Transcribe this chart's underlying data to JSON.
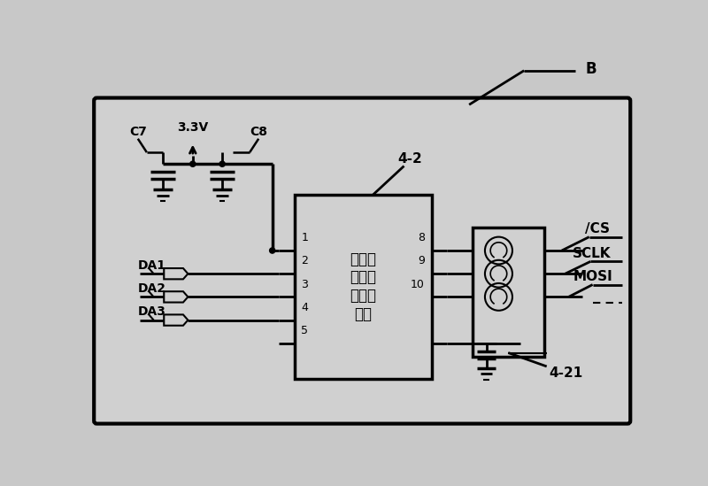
{
  "bg_color": "#c8c8c8",
  "box_bg": "#d0d0d0",
  "label_B": "B",
  "label_42": "4-2",
  "label_C7": "C7",
  "label_33V": "3.3V",
  "label_C8": "C8",
  "label_DA1": "DA1",
  "label_DA2": "DA2",
  "label_DA3": "DA3",
  "label_ICS": "/CS",
  "label_SCLK": "SCLK",
  "label_MOSI": "MOSI",
  "label_421": "4-21",
  "chip_text": "波形发\n生器模\n块主控\n芯片",
  "pin_labels_left": [
    "1",
    "2",
    "3",
    "4",
    "5"
  ],
  "pin_labels_right": [
    "8",
    "9",
    "10"
  ]
}
